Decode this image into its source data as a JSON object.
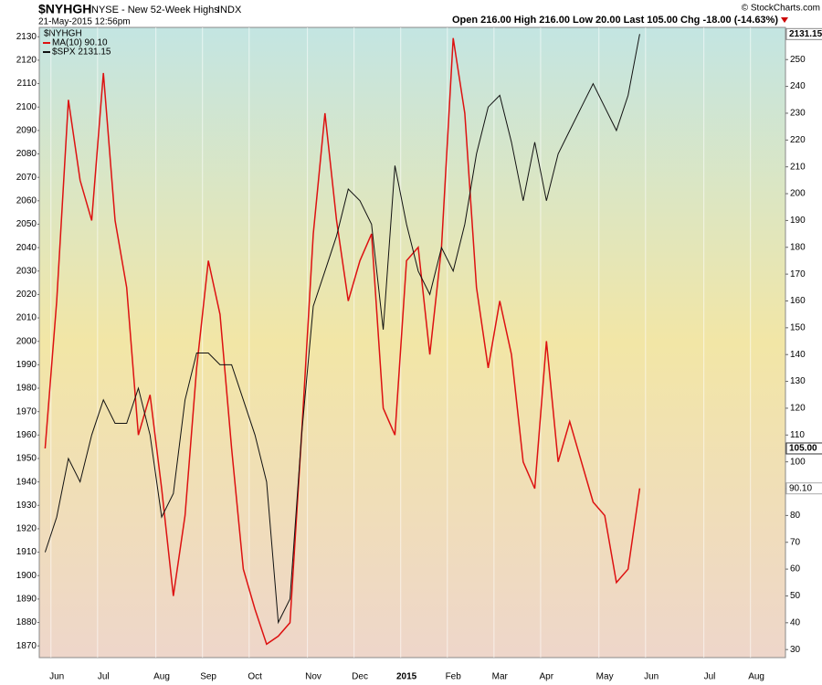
{
  "chart_data": {
    "type": "line",
    "title": "$NYHGH",
    "subtitle": "NYSE - New 52-Week Highs",
    "exchange": "INDX",
    "date": "21-May-2015 12:56pm",
    "quote": "Open 216.00  High 216.00  Low 20.00  Last 105.00  Chg -18.00 (-14.63%)",
    "credit": "© StockCharts.com",
    "legend_title": "$NYHGH",
    "categories": [
      null,
      "Jun",
      null,
      null,
      null,
      "Jul",
      null,
      null,
      null,
      null,
      "Aug",
      null,
      null,
      null,
      "Sep",
      null,
      null,
      null,
      "Oct",
      null,
      null,
      null,
      null,
      "Nov",
      null,
      null,
      null,
      "Dec",
      null,
      null,
      null,
      "2015",
      null,
      null,
      null,
      "Feb",
      null,
      null,
      null,
      "Mar",
      null,
      null,
      null,
      "Apr",
      null,
      null,
      null,
      null,
      "May",
      null,
      null,
      null,
      "Jun",
      null,
      null,
      null,
      null,
      "Jul",
      null,
      null,
      null,
      "Aug",
      null,
      null
    ],
    "series": [
      {
        "name": "MA(10) 90.10",
        "color": "#dd1111",
        "axis": "y2",
        "values": [
          105,
          160,
          235,
          205,
          190,
          245,
          190,
          165,
          110,
          125,
          90,
          50,
          80,
          135,
          175,
          155,
          105,
          60,
          45,
          32,
          35,
          40,
          110,
          185,
          230,
          190,
          160,
          175,
          185,
          120,
          110,
          175,
          180,
          140,
          180,
          258,
          230,
          165,
          135,
          160,
          140,
          100,
          90,
          145,
          100,
          115,
          100,
          85,
          80,
          55,
          60,
          90.1,
          null,
          null,
          null,
          null,
          null,
          null,
          null,
          null,
          null,
          null,
          null,
          null
        ],
        "value_labels": [
          null,
          null,
          null,
          null,
          null,
          null,
          null,
          null,
          null,
          null,
          null,
          null,
          null,
          null,
          null,
          null,
          null,
          null,
          null,
          null,
          null,
          null,
          null,
          null,
          null,
          null,
          null,
          null,
          null,
          null,
          null,
          null,
          null,
          null,
          null,
          null,
          null,
          null,
          null,
          null,
          null,
          null,
          null,
          null,
          null,
          null,
          null,
          null,
          null,
          null,
          null,
          "90.10",
          null,
          null,
          null,
          null,
          null,
          null,
          null,
          null,
          null,
          null,
          null,
          null
        ]
      },
      {
        "name": "$SPX 2131.15",
        "color": "#111111",
        "values": [
          1910,
          1925,
          1950,
          1940,
          1960,
          1975,
          1965,
          1965,
          1980,
          1960,
          1925,
          1935,
          1975,
          1995,
          1995,
          1990,
          1990,
          1975,
          1960,
          1940,
          1880,
          1890,
          1960,
          2015,
          2030,
          2045,
          2065,
          2060,
          2050,
          2005,
          2075,
          2050,
          2030,
          2020,
          2040,
          2030,
          2050,
          2080,
          2100,
          2105,
          2085,
          2060,
          2085,
          2060,
          2080,
          2090,
          2100,
          2110,
          2100,
          2090,
          2105,
          2131.15,
          null,
          null,
          null,
          null,
          null,
          null,
          null,
          null,
          null,
          null,
          null,
          null
        ]
      }
    ],
    "annotations": [
      {
        "text": "105.00",
        "y2": 105
      }
    ],
    "ylim": [
      1865,
      2134
    ],
    "yticks": [
      1870,
      1880,
      1890,
      1900,
      1910,
      1920,
      1930,
      1940,
      1950,
      1960,
      1970,
      1980,
      1990,
      2000,
      2010,
      2020,
      2030,
      2040,
      2050,
      2060,
      2070,
      2080,
      2090,
      2100,
      2110,
      2120,
      2130
    ],
    "y2lim": [
      27,
      262
    ],
    "y2ticks": [
      30,
      40,
      50,
      60,
      70,
      80,
      90,
      100,
      110,
      120,
      130,
      140,
      150,
      160,
      170,
      180,
      190,
      200,
      210,
      220,
      230,
      240,
      250
    ],
    "grid": true
  }
}
